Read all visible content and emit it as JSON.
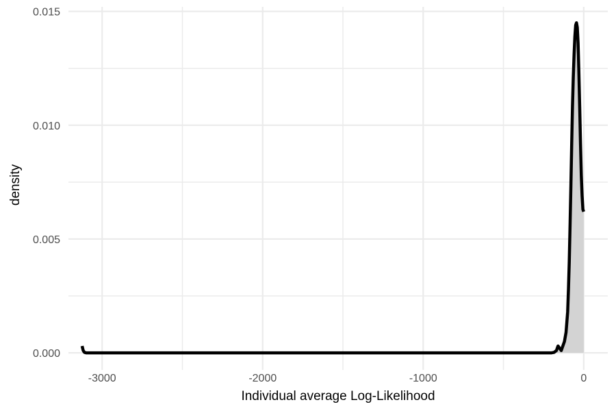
{
  "chart_data": {
    "type": "area",
    "xlabel": "Individual average Log-Likelihood",
    "ylabel": "density",
    "xlim": [
      -3210,
      150
    ],
    "ylim": [
      -0.00075,
      0.0152
    ],
    "x_ticks": [
      -3000,
      -2000,
      -1000,
      0
    ],
    "x_tick_labels": [
      "-3000",
      "-2000",
      "-1000",
      "0"
    ],
    "y_ticks": [
      0.0,
      0.005,
      0.01,
      0.015
    ],
    "y_tick_labels": [
      "0.000",
      "0.005",
      "0.010",
      "0.015"
    ],
    "grid": true,
    "fill_color": "#d3d3d3",
    "line_color": "#000000",
    "series": [
      {
        "x": [
          -3125,
          -3118,
          -3110,
          -3100,
          -3000,
          -2500,
          -2000,
          -1500,
          -1000,
          -500,
          -200,
          -185,
          -170,
          -160,
          -150,
          -140,
          -130,
          -120,
          -110,
          -100,
          -95,
          -90,
          -85,
          -80,
          -75,
          -70,
          -65,
          -60,
          -55,
          -50,
          -45,
          -40,
          -35,
          -30,
          -25,
          -20,
          -15,
          -10,
          -5,
          0
        ],
        "y": [
          0.0003,
          0.0001,
          2e-05,
          0.0,
          0.0,
          0.0,
          0.0,
          0.0,
          0.0,
          0.0,
          0.0,
          2e-05,
          0.0001,
          0.0003,
          0.0002,
          0.0001,
          0.0003,
          0.0005,
          0.0009,
          0.0018,
          0.0028,
          0.004,
          0.0056,
          0.0073,
          0.0091,
          0.0108,
          0.0121,
          0.0131,
          0.0139,
          0.0144,
          0.0145,
          0.0143,
          0.0136,
          0.0123,
          0.0108,
          0.0092,
          0.0078,
          0.0069,
          0.0063,
          0.0062
        ]
      }
    ]
  }
}
